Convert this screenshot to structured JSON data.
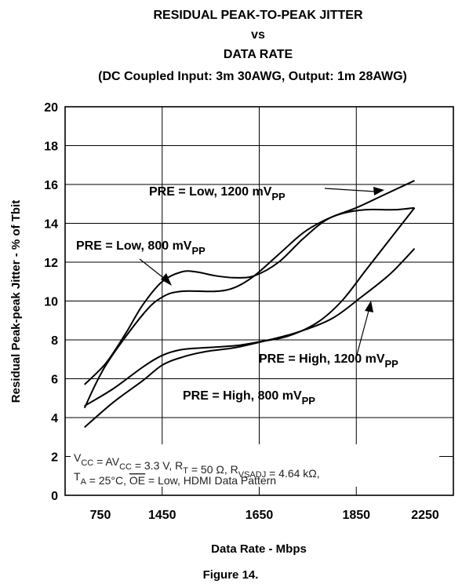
{
  "chart_data": {
    "type": "line",
    "title_lines": [
      "RESIDUAL PEAK-TO-PEAK JITTER",
      "vs",
      "DATA RATE",
      "(DC Coupled Input: 3m 30AWG, Output: 1m 28AWG)"
    ],
    "xlabel": "Data Rate - Mbps",
    "ylabel": "Residual Peak-peak Jitter - % of Tbit",
    "x_categories": [
      "750",
      "1450",
      "1650",
      "1850",
      "2250"
    ],
    "yticks": [
      "0",
      "2",
      "4",
      "6",
      "8",
      "10",
      "12",
      "14",
      "16",
      "18",
      "20"
    ],
    "ylim": [
      0,
      20
    ],
    "grid": true,
    "series": [
      {
        "name": "PRE = Low, 1200 mV_PP",
        "points": [
          [
            0.2,
            4.5
          ],
          [
            0.42,
            6.7
          ],
          [
            0.8,
            9.3
          ],
          [
            1.0,
            10.2
          ],
          [
            1.2,
            10.5
          ],
          [
            1.55,
            10.5
          ],
          [
            1.75,
            10.7
          ],
          [
            1.95,
            11.3
          ],
          [
            2.2,
            12.4
          ],
          [
            2.45,
            13.5
          ],
          [
            2.65,
            14.1
          ],
          [
            2.85,
            14.5
          ],
          [
            3.1,
            14.7
          ],
          [
            3.4,
            14.7
          ],
          [
            3.6,
            14.8
          ]
        ]
      },
      {
        "name": "PRE = Low, 800 mV_PP",
        "points": [
          [
            0.2,
            5.7
          ],
          [
            0.42,
            6.8
          ],
          [
            0.62,
            8.3
          ],
          [
            0.8,
            9.8
          ],
          [
            1.0,
            11.0
          ],
          [
            1.2,
            11.5
          ],
          [
            1.35,
            11.5
          ],
          [
            1.55,
            11.3
          ],
          [
            1.75,
            11.2
          ],
          [
            1.95,
            11.3
          ],
          [
            2.2,
            12.0
          ],
          [
            2.45,
            13.2
          ],
          [
            2.7,
            14.2
          ],
          [
            3.0,
            14.8
          ],
          [
            3.3,
            15.5
          ],
          [
            3.6,
            16.2
          ]
        ]
      },
      {
        "name": "PRE = High, 1200 mV_PP",
        "points": [
          [
            0.2,
            4.6
          ],
          [
            0.5,
            5.5
          ],
          [
            0.8,
            6.6
          ],
          [
            1.0,
            7.2
          ],
          [
            1.2,
            7.5
          ],
          [
            1.45,
            7.6
          ],
          [
            1.75,
            7.7
          ],
          [
            2.0,
            7.9
          ],
          [
            2.3,
            8.2
          ],
          [
            2.6,
            8.9
          ],
          [
            2.85,
            10.0
          ],
          [
            3.1,
            11.6
          ],
          [
            3.35,
            13.2
          ],
          [
            3.6,
            14.8
          ]
        ]
      },
      {
        "name": "PRE = High, 800 mV_PP",
        "points": [
          [
            0.2,
            3.5
          ],
          [
            0.5,
            4.8
          ],
          [
            0.8,
            5.9
          ],
          [
            1.0,
            6.7
          ],
          [
            1.2,
            7.1
          ],
          [
            1.45,
            7.4
          ],
          [
            1.75,
            7.6
          ],
          [
            2.1,
            8.0
          ],
          [
            2.4,
            8.4
          ],
          [
            2.75,
            9.1
          ],
          [
            3.05,
            10.2
          ],
          [
            3.35,
            11.4
          ],
          [
            3.6,
            12.7
          ]
        ]
      }
    ],
    "annotations": [
      {
        "main": "PRE = Low, 1200 mV",
        "sub": "PP"
      },
      {
        "main": "PRE = Low, 800 mV",
        "sub": "PP"
      },
      {
        "main": "PRE = High, 1200 mV",
        "sub": "PP"
      },
      {
        "main": "PRE = High, 800 mV",
        "sub": "PP"
      }
    ],
    "conditions": {
      "line1": "V_CC = AV_CC = 3.3 V, R_T = 50 Ω, R_VSADJ = 4.64 kΩ,",
      "line2": "T_A = 25°C, OE = Low, HDMI Data Pattern"
    }
  },
  "figure_caption": "Figure 14."
}
